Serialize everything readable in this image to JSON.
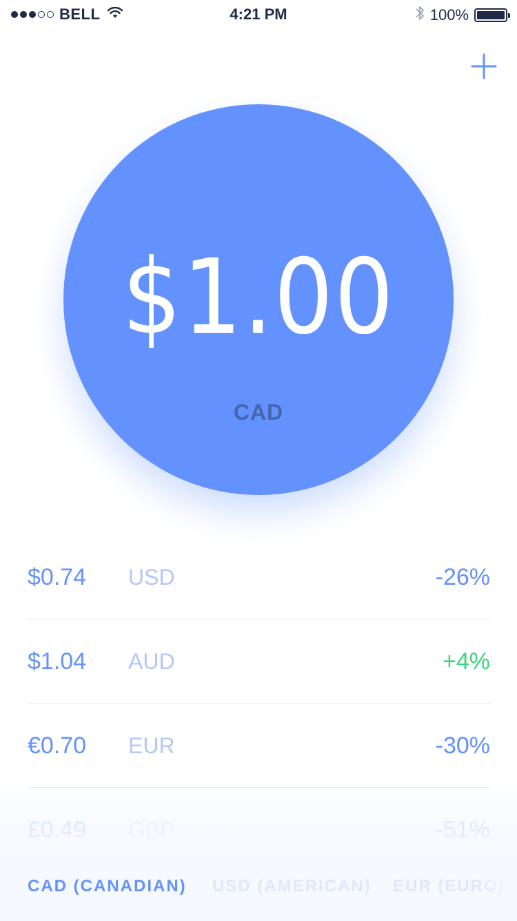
{
  "status_bar": {
    "carrier": "BELL",
    "time": "4:21 PM",
    "battery": "100%",
    "signal_strength": 3,
    "signal_max": 5
  },
  "icons": {
    "add": "plus-icon",
    "wifi": "wifi-icon",
    "bluetooth": "bluetooth-icon",
    "battery": "battery-icon"
  },
  "main": {
    "amount": "$1.00",
    "currency": "CAD"
  },
  "rates": [
    {
      "amount": "$0.74",
      "code": "USD",
      "change": "-26%",
      "trend": "negative"
    },
    {
      "amount": "$1.04",
      "code": "AUD",
      "change": "+4%",
      "trend": "positive"
    },
    {
      "amount": "€0.70",
      "code": "EUR",
      "change": "-30%",
      "trend": "negative"
    },
    {
      "amount": "£0.49",
      "code": "GBP",
      "change": "-51%",
      "trend": "negative"
    }
  ],
  "tabs": [
    {
      "label": "CAD (CANADIAN)",
      "active": true
    },
    {
      "label": "USD (AMERICAN)",
      "active": false
    },
    {
      "label": "EUR (EURO)",
      "active": false
    }
  ],
  "colors": {
    "accent": "#6391fd",
    "positive": "#3bd47a",
    "muted": "#b3c7f7",
    "text_dark": "#1f2a44"
  }
}
